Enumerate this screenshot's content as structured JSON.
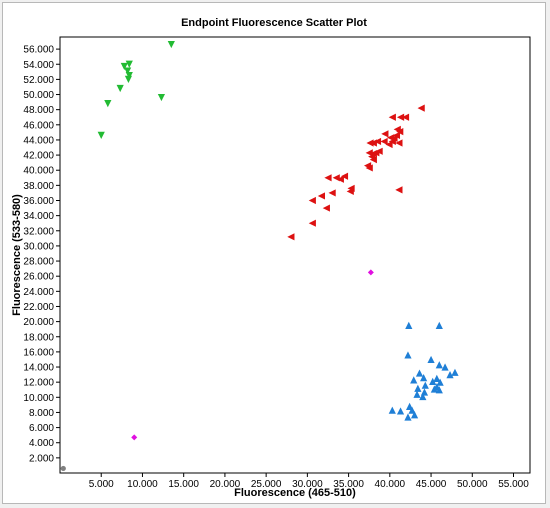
{
  "chart_data": {
    "type": "scatter",
    "title": "Endpoint Fluorescence Scatter Plot",
    "xlabel": "Fluorescence (465-510)",
    "ylabel": "Fluorescence (533-580)",
    "xlim": [
      0,
      57000
    ],
    "ylim": [
      0,
      57600
    ],
    "xticks": [
      5000,
      10000,
      15000,
      20000,
      25000,
      30000,
      35000,
      40000,
      45000,
      50000,
      55000
    ],
    "yticks": [
      2000,
      4000,
      6000,
      8000,
      10000,
      12000,
      14000,
      16000,
      18000,
      20000,
      22000,
      24000,
      26000,
      28000,
      30000,
      32000,
      34000,
      36000,
      38000,
      40000,
      42000,
      44000,
      46000,
      48000,
      50000,
      52000,
      54000,
      56000
    ],
    "tick_labels_x": [
      "5.000",
      "10.000",
      "15.000",
      "20.000",
      "25.000",
      "30.000",
      "35.000",
      "40.000",
      "45.000",
      "50.000",
      "55.000"
    ],
    "tick_labels_y": [
      "2.000",
      "4.000",
      "6.000",
      "8.000",
      "10.000",
      "12.000",
      "14.000",
      "16.000",
      "18.000",
      "20.000",
      "22.000",
      "24.000",
      "26.000",
      "28.000",
      "30.000",
      "32.000",
      "34.000",
      "36.000",
      "38.000",
      "40.000",
      "42.000",
      "44.000",
      "46.000",
      "48.000",
      "50.000",
      "52.000",
      "54.000",
      "56.000"
    ],
    "grid": false,
    "series": [
      {
        "marker": "triangle-down",
        "color": "#22bb33",
        "points": [
          [
            13500,
            56600
          ],
          [
            7800,
            53700
          ],
          [
            8400,
            54000
          ],
          [
            8200,
            53100
          ],
          [
            8400,
            52500
          ],
          [
            8300,
            52000
          ],
          [
            7300,
            50800
          ],
          [
            12300,
            49600
          ],
          [
            5800,
            48800
          ],
          [
            5000,
            44600
          ]
        ]
      },
      {
        "marker": "triangle-left",
        "color": "#dd1111",
        "points": [
          [
            43800,
            48200
          ],
          [
            40300,
            47000
          ],
          [
            41300,
            47000
          ],
          [
            41900,
            47000
          ],
          [
            40900,
            45400
          ],
          [
            41200,
            45100
          ],
          [
            39400,
            44800
          ],
          [
            40800,
            44600
          ],
          [
            40100,
            44300
          ],
          [
            40500,
            44200
          ],
          [
            39300,
            43800
          ],
          [
            38500,
            43800
          ],
          [
            40300,
            43800
          ],
          [
            38000,
            43600
          ],
          [
            41100,
            43600
          ],
          [
            39900,
            43400
          ],
          [
            37600,
            43600
          ],
          [
            38700,
            42500
          ],
          [
            38300,
            42300
          ],
          [
            38000,
            42200
          ],
          [
            37500,
            42300
          ],
          [
            37800,
            41800
          ],
          [
            38000,
            41400
          ],
          [
            37300,
            40600
          ],
          [
            37500,
            40300
          ],
          [
            34500,
            39200
          ],
          [
            33500,
            39000
          ],
          [
            32500,
            39000
          ],
          [
            34000,
            38800
          ],
          [
            35300,
            37600
          ],
          [
            35200,
            37200
          ],
          [
            33000,
            37000
          ],
          [
            31700,
            36600
          ],
          [
            30600,
            36000
          ],
          [
            41100,
            37400
          ],
          [
            32300,
            35000
          ],
          [
            30600,
            33000
          ],
          [
            28000,
            31200
          ]
        ]
      },
      {
        "marker": "triangle-up",
        "color": "#1f7fd6",
        "points": [
          [
            42300,
            19500
          ],
          [
            46000,
            19500
          ],
          [
            42200,
            15600
          ],
          [
            45000,
            15000
          ],
          [
            46000,
            14300
          ],
          [
            46700,
            14000
          ],
          [
            47900,
            13300
          ],
          [
            43600,
            13200
          ],
          [
            47300,
            13000
          ],
          [
            44100,
            12600
          ],
          [
            45700,
            12500
          ],
          [
            42900,
            12300
          ],
          [
            45200,
            12100
          ],
          [
            46100,
            12000
          ],
          [
            44300,
            11600
          ],
          [
            45700,
            11400
          ],
          [
            43400,
            11200
          ],
          [
            45400,
            11100
          ],
          [
            46000,
            11000
          ],
          [
            44200,
            10700
          ],
          [
            43300,
            10400
          ],
          [
            44000,
            10100
          ],
          [
            42400,
            8800
          ],
          [
            40300,
            8300
          ],
          [
            41300,
            8200
          ],
          [
            42700,
            8300
          ],
          [
            43000,
            7700
          ],
          [
            42200,
            7400
          ]
        ]
      },
      {
        "marker": "diamond",
        "color": "#e010e0",
        "points": [
          [
            37700,
            26500
          ],
          [
            9000,
            4700
          ]
        ]
      },
      {
        "marker": "circle",
        "color": "#808080",
        "points": [
          [
            400,
            600
          ]
        ]
      }
    ]
  }
}
